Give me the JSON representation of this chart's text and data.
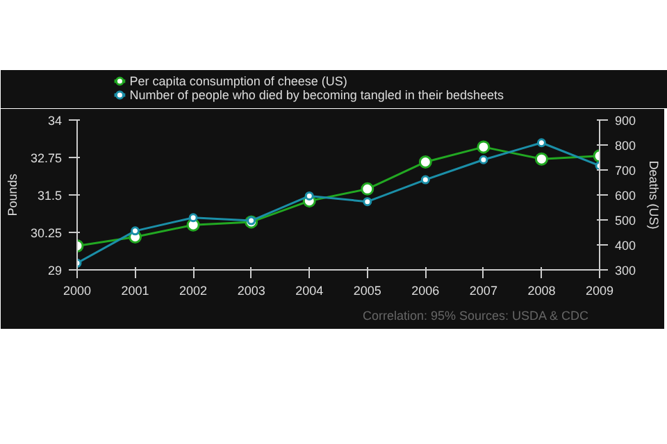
{
  "chart_data": {
    "type": "line",
    "x": [
      2000,
      2001,
      2002,
      2003,
      2004,
      2005,
      2006,
      2007,
      2008,
      2009
    ],
    "series": [
      {
        "name": "Per capita consumption of cheese (US)",
        "color": "#22a822",
        "values": [
          29.8,
          30.1,
          30.5,
          30.6,
          31.3,
          31.7,
          32.6,
          33.1,
          32.7,
          32.8
        ]
      },
      {
        "name": "Number of people who died by becoming tangled in their bedsheets",
        "color": "#1b8fa8",
        "axis": "y2",
        "values": [
          327,
          456,
          509,
          497,
          596,
          573,
          661,
          741,
          809,
          717
        ]
      }
    ],
    "ylabel": "Pounds",
    "y2label": "Deaths (US)",
    "xlim": [
      2000,
      2009
    ],
    "xticks": [
      2000,
      2001,
      2002,
      2003,
      2004,
      2005,
      2006,
      2007,
      2008,
      2009
    ],
    "ylim": [
      29,
      34
    ],
    "yticks": [
      29,
      30.25,
      31.5,
      32.75,
      34
    ],
    "y2lim": [
      300,
      900
    ],
    "y2ticks": [
      300,
      400,
      500,
      600,
      700,
      800,
      900
    ],
    "grid": false,
    "legend": "top left",
    "marker": "circle",
    "line_style": "solid",
    "annotations": [
      "Correlation: 95%",
      "Sources: USDA & CDC"
    ]
  }
}
